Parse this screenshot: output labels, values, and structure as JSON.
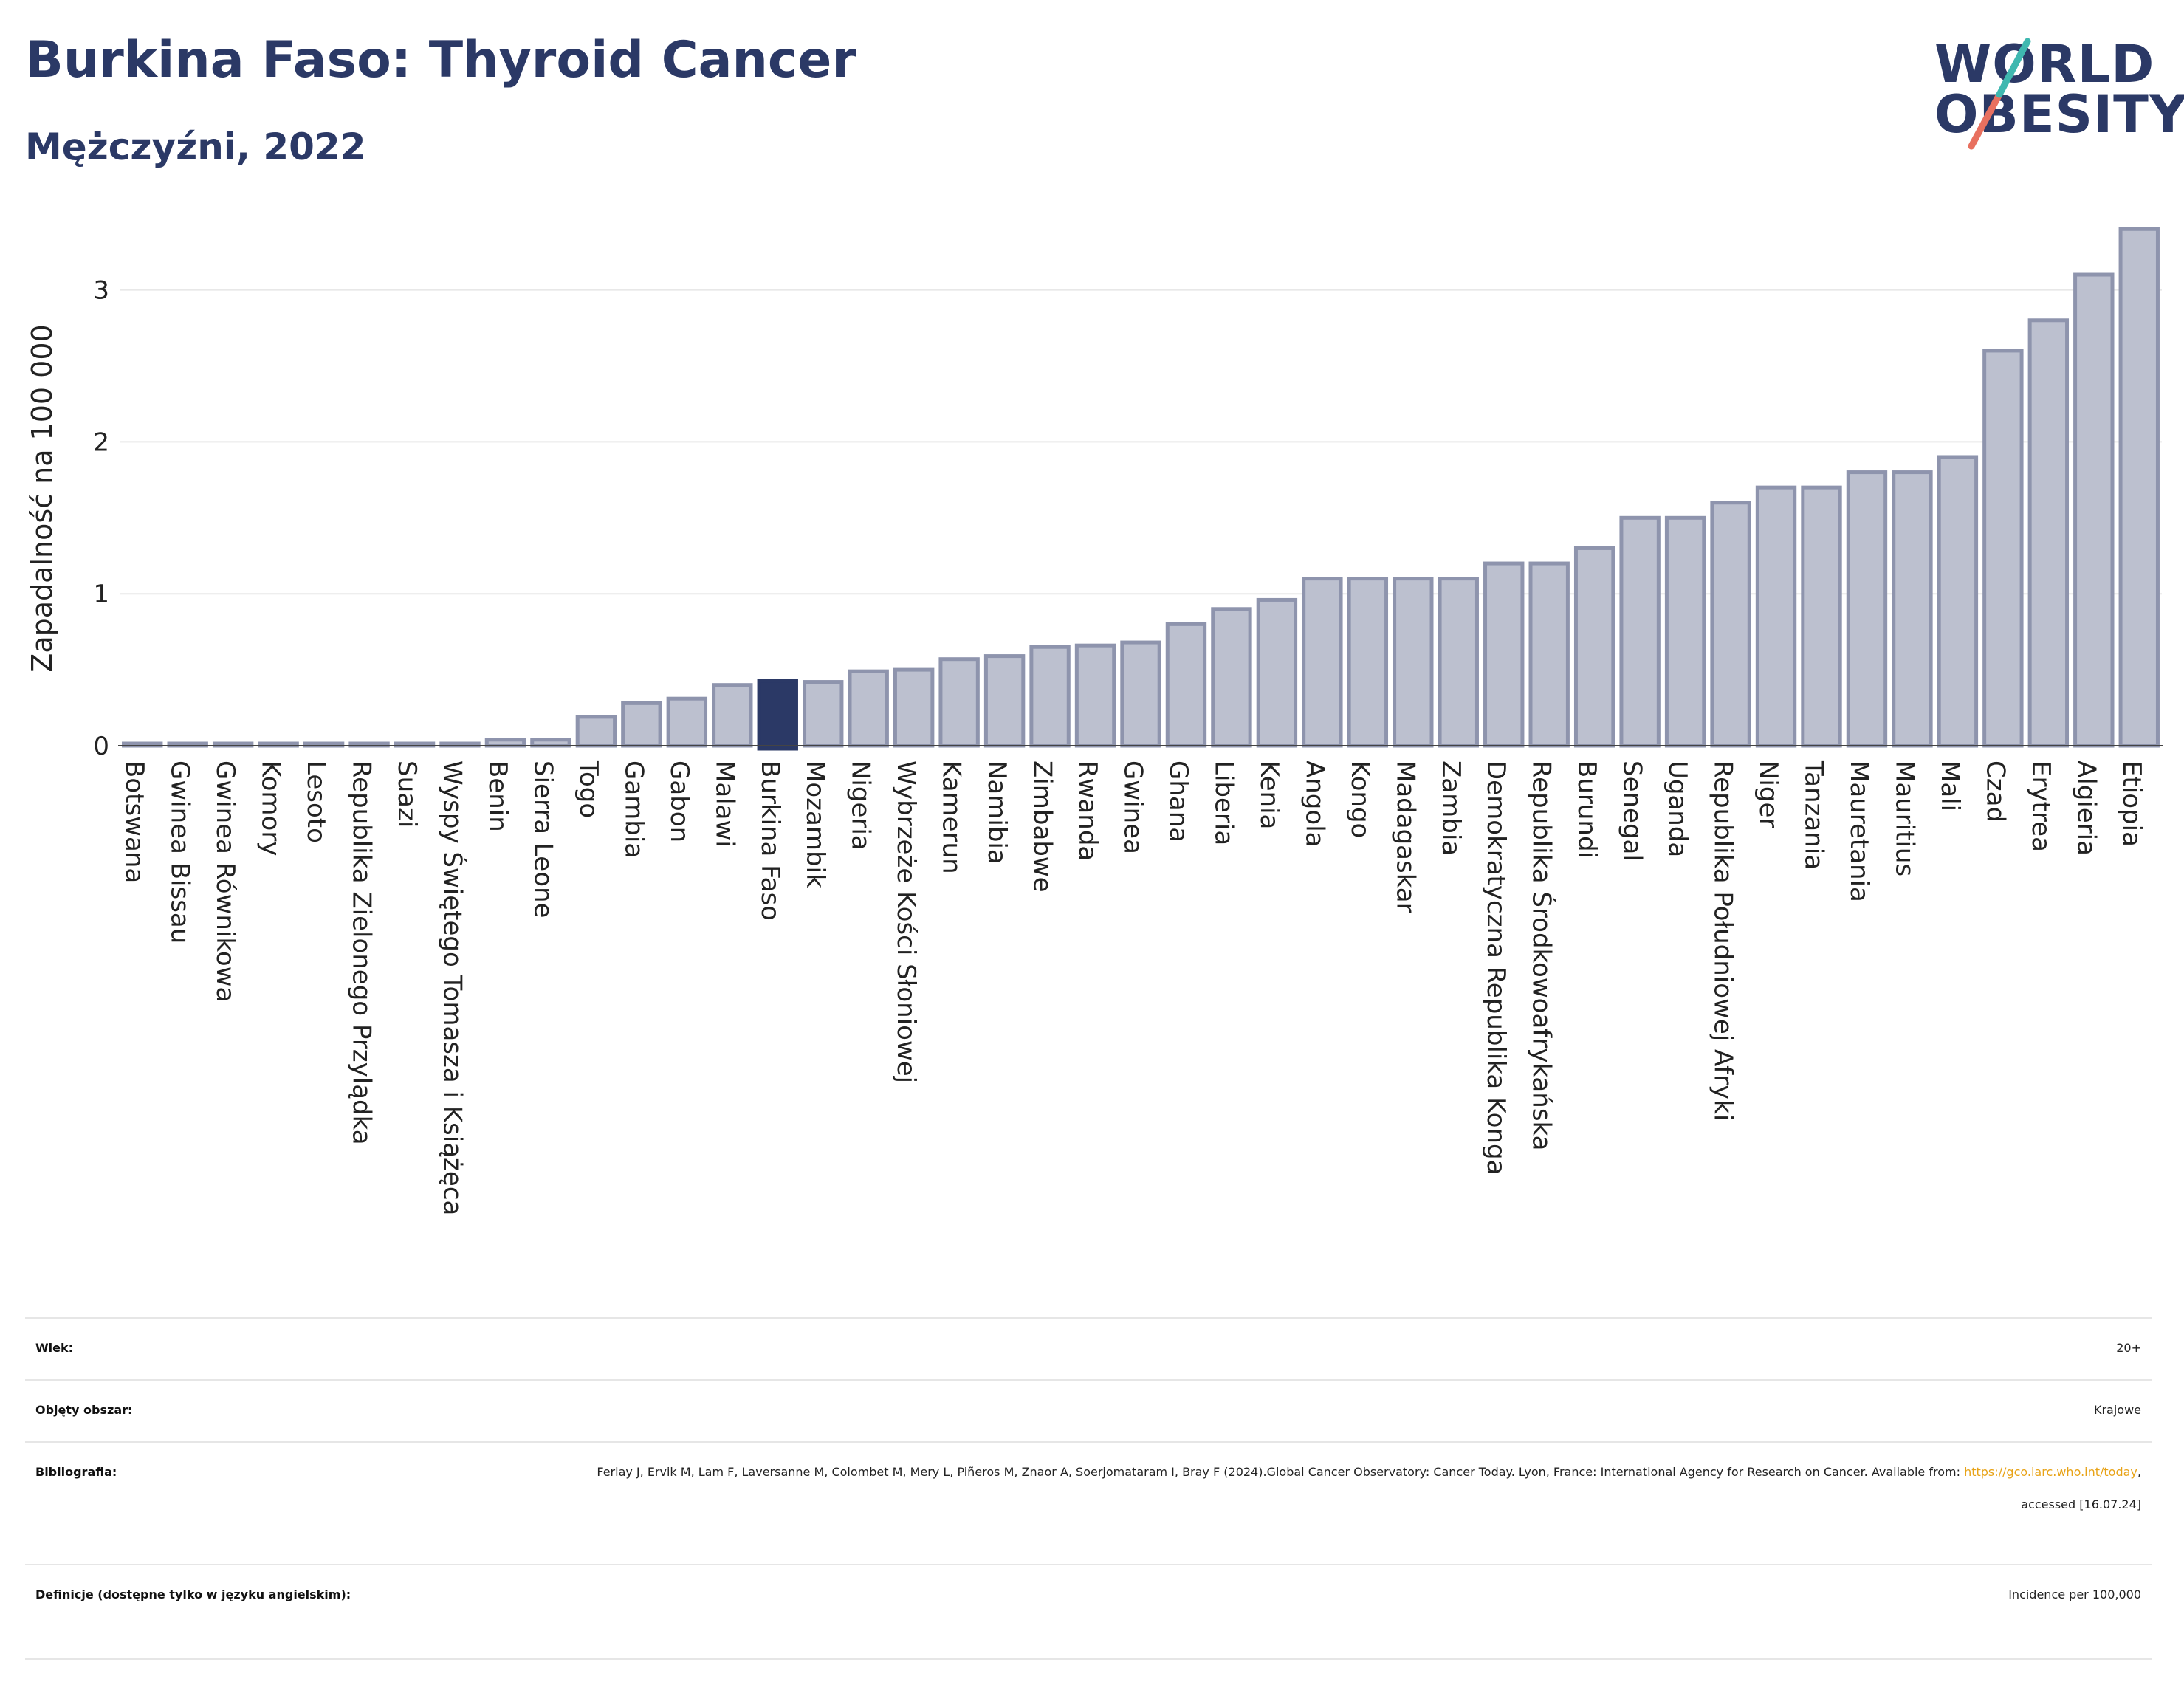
{
  "header": {
    "title": "Burkina Faso: Thyroid Cancer",
    "subtitle": "Mężczyźni, 2022"
  },
  "logo": {
    "line1": "WORLD",
    "line2": "OBESITY"
  },
  "chart_data": {
    "type": "bar",
    "ylabel": "Zapadalność na 100 000",
    "ylim": [
      0,
      3.45
    ],
    "yticks": [
      0,
      1,
      2,
      3
    ],
    "grid": true,
    "highlight": "Burkina Faso",
    "colors": {
      "bar": "#bcc0cf",
      "bar_border": "#8e94ad",
      "highlight": "#2b3966"
    },
    "categories": [
      "Botswana",
      "Gwinea Bissau",
      "Gwinea Równikowa",
      "Komory",
      "Lesoto",
      "Republika Zielonego Przylądka",
      "Suazi",
      "Wyspy Świętego Tomasza i Książęca",
      "Benin",
      "Sierra Leone",
      "Togo",
      "Gambia",
      "Gabon",
      "Malawi",
      "Burkina Faso",
      "Mozambik",
      "Nigeria",
      "Wybrzeże Kości Słoniowej",
      "Kamerun",
      "Namibia",
      "Zimbabwe",
      "Rwanda",
      "Gwinea",
      "Ghana",
      "Liberia",
      "Kenia",
      "Angola",
      "Kongo",
      "Madagaskar",
      "Zambia",
      "Demokratyczna Republika Konga",
      "Republika Środkowoafrykańska",
      "Burundi",
      "Senegal",
      "Uganda",
      "Republika Południowej Afryki",
      "Niger",
      "Tanzania",
      "Mauretania",
      "Mauritius",
      "Mali",
      "Czad",
      "Erytrea",
      "Algieria",
      "Etiopia"
    ],
    "values": [
      0,
      0,
      0,
      0,
      0,
      0,
      0,
      0,
      0.04,
      0.04,
      0.19,
      0.28,
      0.31,
      0.4,
      0.43,
      0.42,
      0.49,
      0.5,
      0.57,
      0.59,
      0.65,
      0.66,
      0.68,
      0.8,
      0.9,
      0.96,
      1.1,
      1.1,
      1.1,
      1.1,
      1.2,
      1.2,
      1.3,
      1.5,
      1.5,
      1.6,
      1.7,
      1.7,
      1.8,
      1.8,
      1.9,
      2.6,
      2.8,
      3.1,
      3.4
    ]
  },
  "info": [
    {
      "key": "Wiek:",
      "value": "20+"
    },
    {
      "key": "Objęty obszar:",
      "value": "Krajowe"
    },
    {
      "key": "Bibliografia:",
      "value_pre": "Ferlay J, Ervik M, Lam F, Laversanne M, Colombet M, Mery L, Piñeros M, Znaor A, Soerjomataram I, Bray F (2024).Global Cancer Observatory: Cancer Today. Lyon, France: International Agency for Research on Cancer. Available from: ",
      "link": "https://gco.iarc.who.int/today",
      "value_post": ", accessed [16.07.24]"
    },
    {
      "key": "Definicje (dostępne tylko w języku angielskim):",
      "value": "Incidence per 100,000"
    }
  ]
}
